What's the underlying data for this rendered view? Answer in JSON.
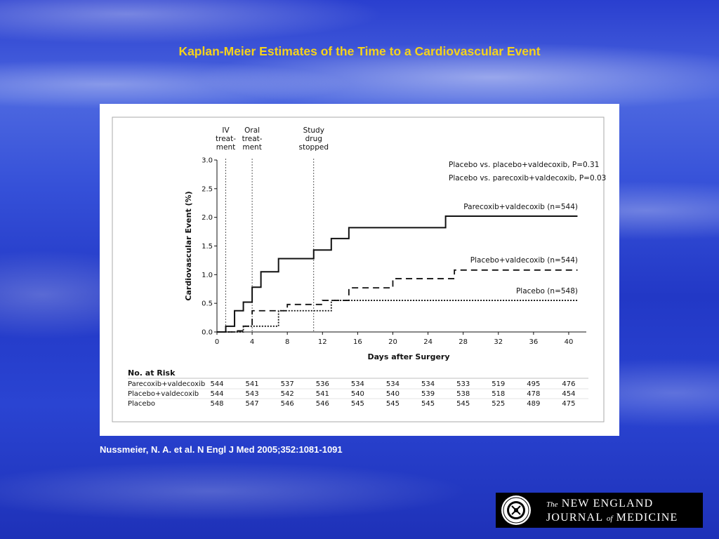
{
  "slide": {
    "title": "Kaplan-Meier Estimates of the Time to a Cardiovascular Event",
    "citation": "Nussmeier, N. A. et al. N Engl J Med 2005;352:1081-1091",
    "logo": {
      "line1_small": "The",
      "line1": "NEW ENGLAND",
      "line2a": "JOURNAL",
      "line2_small": "of",
      "line2b": "MEDICINE"
    },
    "colors": {
      "title": "#f6d31b",
      "background": "#2a44d2"
    }
  },
  "chart_data": {
    "type": "line",
    "step": true,
    "xlabel": "Days after Surgery",
    "ylabel": "Cardiovascular Event (%)",
    "xlim": [
      0,
      42
    ],
    "ylim": [
      0,
      3.0
    ],
    "xticks": [
      0,
      4,
      8,
      12,
      16,
      20,
      24,
      28,
      32,
      36,
      40
    ],
    "yticks": [
      "0.0",
      "0.5",
      "1.0",
      "1.5",
      "2.0",
      "2.5",
      "3.0"
    ],
    "phase_markers": [
      {
        "x": 1,
        "label": [
          "IV",
          "treat-",
          "ment"
        ]
      },
      {
        "x": 4,
        "label": [
          "Oral",
          "treat-",
          "ment"
        ]
      },
      {
        "x": 11,
        "label": [
          "Study",
          "drug",
          "stopped"
        ]
      }
    ],
    "annotations": [
      "Placebo vs. placebo+valdecoxib, P=0.31",
      "Placebo vs. parecoxib+valdecoxib, P=0.03"
    ],
    "series": [
      {
        "name": "Parecoxib+valdecoxib (n=544)",
        "style": "solid",
        "points": [
          [
            0,
            0
          ],
          [
            1,
            0.1
          ],
          [
            2,
            0.37
          ],
          [
            3,
            0.52
          ],
          [
            4,
            0.78
          ],
          [
            5,
            1.05
          ],
          [
            7,
            1.28
          ],
          [
            11,
            1.43
          ],
          [
            13,
            1.63
          ],
          [
            15,
            1.82
          ],
          [
            26,
            2.02
          ],
          [
            41,
            2.02
          ]
        ]
      },
      {
        "name": "Placebo+valdecoxib (n=544)",
        "style": "dashed",
        "points": [
          [
            0,
            0
          ],
          [
            2,
            0.02
          ],
          [
            3,
            0.1
          ],
          [
            4,
            0.37
          ],
          [
            8,
            0.48
          ],
          [
            12,
            0.55
          ],
          [
            15,
            0.77
          ],
          [
            20,
            0.93
          ],
          [
            27,
            1.08
          ],
          [
            41,
            1.08
          ]
        ]
      },
      {
        "name": "Placebo (n=548)",
        "style": "dotted",
        "points": [
          [
            0,
            0
          ],
          [
            3,
            0.1
          ],
          [
            7,
            0.37
          ],
          [
            13,
            0.55
          ],
          [
            41,
            0.55
          ]
        ]
      }
    ],
    "risk_table": {
      "title": "No. at Risk",
      "rows": [
        {
          "label": "Parecoxib+valdecoxib",
          "values": [
            "544",
            "541",
            "537",
            "536",
            "534",
            "534",
            "534",
            "533",
            "519",
            "495",
            "476"
          ]
        },
        {
          "label": "Placebo+valdecoxib",
          "values": [
            "544",
            "543",
            "542",
            "541",
            "540",
            "540",
            "539",
            "538",
            "518",
            "478",
            "454"
          ]
        },
        {
          "label": "Placebo",
          "values": [
            "548",
            "547",
            "546",
            "546",
            "545",
            "545",
            "545",
            "545",
            "525",
            "489",
            "475"
          ]
        }
      ]
    }
  }
}
